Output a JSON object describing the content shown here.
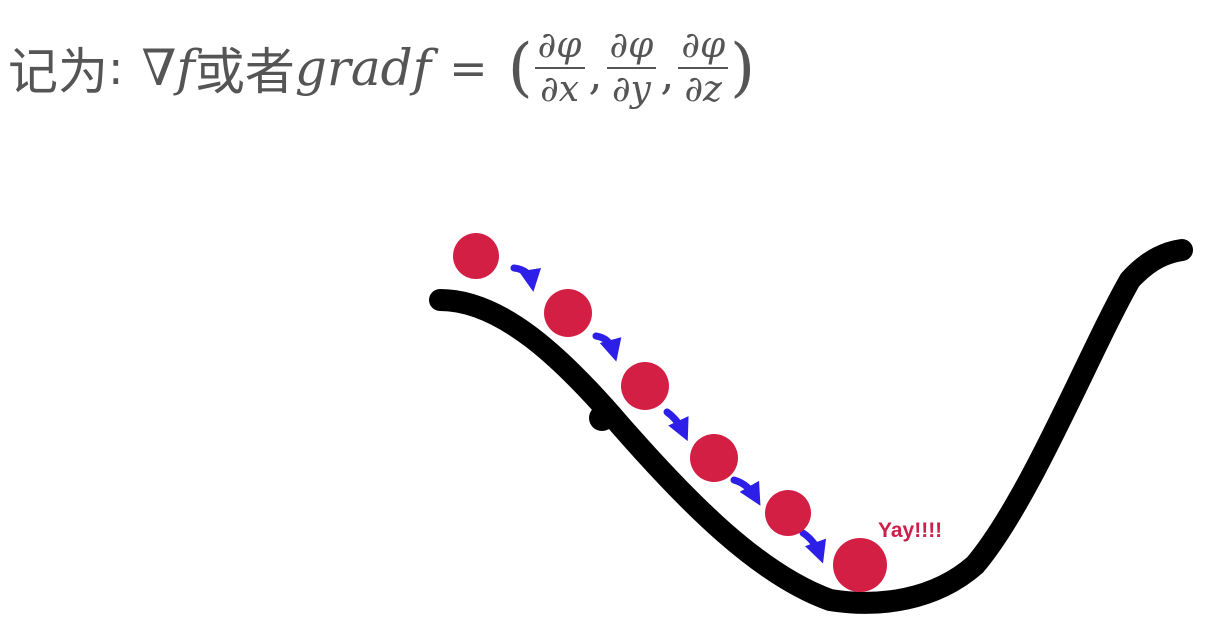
{
  "formula": {
    "prefix": "记为",
    "colon": ":",
    "nabla_f": "∇f",
    "or_word": "或者",
    "grad_f": "gradf",
    "equals": "=",
    "open_paren": "(",
    "close_paren": ")",
    "comma": ",",
    "fractions": [
      {
        "numerator": "∂φ",
        "denominator": "∂x"
      },
      {
        "numerator": "∂φ",
        "denominator": "∂y"
      },
      {
        "numerator": "∂φ",
        "denominator": "∂z"
      }
    ]
  },
  "diagram": {
    "annotation": "Yay!!!!",
    "ball_count": 6,
    "step_arrow_count": 5,
    "colors": {
      "curve": "#000000",
      "ball": "#d41f45",
      "arrow": "#2d1fe8",
      "annotation": "#cc1f4a",
      "text": "#555555"
    }
  }
}
